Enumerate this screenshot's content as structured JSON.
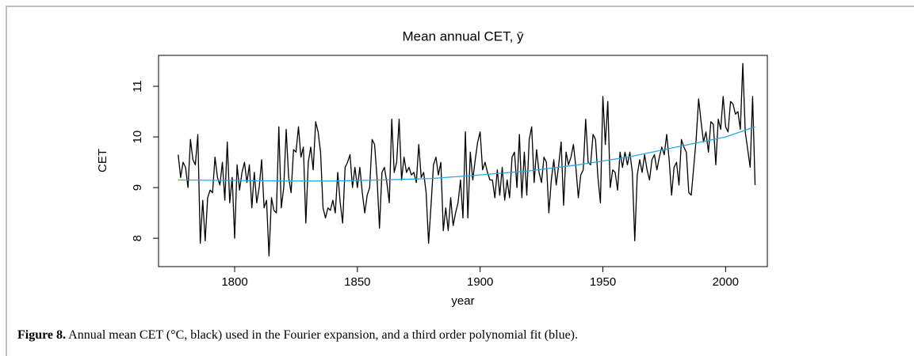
{
  "chart_data": {
    "type": "line",
    "title": "Mean annual CET,  ȳ",
    "xlabel": "year",
    "ylabel": "CET",
    "xlim": [
      1769,
      2017
    ],
    "ylim": [
      7.44,
      11.61
    ],
    "xticks": [
      1800,
      1850,
      1900,
      1950,
      2000
    ],
    "yticks": [
      8,
      9,
      10,
      11
    ],
    "grid": false,
    "series": [
      {
        "color": "#000000",
        "x": [
          1777,
          1778,
          1779,
          1780,
          1781,
          1782,
          1783,
          1784,
          1785,
          1786,
          1787,
          1788,
          1789,
          1790,
          1791,
          1792,
          1793,
          1794,
          1795,
          1796,
          1797,
          1798,
          1799,
          1800,
          1801,
          1802,
          1803,
          1804,
          1805,
          1806,
          1807,
          1808,
          1809,
          1810,
          1811,
          1812,
          1813,
          1814,
          1815,
          1816,
          1817,
          1818,
          1819,
          1820,
          1821,
          1822,
          1823,
          1824,
          1825,
          1826,
          1827,
          1828,
          1829,
          1830,
          1831,
          1832,
          1833,
          1834,
          1835,
          1836,
          1837,
          1838,
          1839,
          1840,
          1841,
          1842,
          1843,
          1844,
          1845,
          1846,
          1847,
          1848,
          1849,
          1850,
          1851,
          1852,
          1853,
          1854,
          1855,
          1856,
          1857,
          1858,
          1859,
          1860,
          1861,
          1862,
          1863,
          1864,
          1865,
          1866,
          1867,
          1868,
          1869,
          1870,
          1871,
          1872,
          1873,
          1874,
          1875,
          1876,
          1877,
          1878,
          1879,
          1880,
          1881,
          1882,
          1883,
          1884,
          1885,
          1886,
          1887,
          1888,
          1889,
          1890,
          1891,
          1892,
          1893,
          1894,
          1895,
          1896,
          1897,
          1898,
          1899,
          1900,
          1901,
          1902,
          1903,
          1904,
          1905,
          1906,
          1907,
          1908,
          1909,
          1910,
          1911,
          1912,
          1913,
          1914,
          1915,
          1916,
          1917,
          1918,
          1919,
          1920,
          1921,
          1922,
          1923,
          1924,
          1925,
          1926,
          1927,
          1928,
          1929,
          1930,
          1931,
          1932,
          1933,
          1934,
          1935,
          1936,
          1937,
          1938,
          1939,
          1940,
          1941,
          1942,
          1943,
          1944,
          1945,
          1946,
          1947,
          1948,
          1949,
          1950,
          1951,
          1952,
          1953,
          1954,
          1955,
          1956,
          1957,
          1958,
          1959,
          1960,
          1961,
          1962,
          1963,
          1964,
          1965,
          1966,
          1967,
          1968,
          1969,
          1970,
          1971,
          1972,
          1973,
          1974,
          1975,
          1976,
          1977,
          1978,
          1979,
          1980,
          1981,
          1982,
          1983,
          1984,
          1985,
          1986,
          1987,
          1988,
          1989,
          1990,
          1991,
          1992,
          1993,
          1994,
          1995,
          1996,
          1997,
          1998,
          1999,
          2000,
          2001,
          2002,
          2003,
          2004,
          2005,
          2006,
          2007,
          2008,
          2009,
          2010,
          2011,
          2012
        ],
        "values": [
          9.65,
          9.2,
          9.5,
          9.4,
          9.0,
          9.95,
          9.55,
          9.45,
          10.05,
          7.9,
          8.75,
          7.95,
          8.8,
          8.95,
          8.9,
          9.6,
          9.2,
          9.05,
          9.5,
          8.75,
          9.9,
          8.7,
          9.2,
          8.0,
          9.45,
          8.95,
          9.3,
          9.5,
          9.1,
          9.45,
          8.6,
          9.3,
          8.7,
          9.0,
          9.55,
          8.6,
          8.75,
          7.65,
          8.8,
          8.55,
          8.5,
          10.2,
          8.6,
          9.0,
          10.15,
          9.2,
          8.9,
          9.75,
          9.7,
          10.2,
          9.6,
          9.8,
          8.3,
          9.5,
          9.8,
          9.35,
          10.3,
          10.1,
          9.7,
          8.6,
          8.4,
          8.6,
          8.55,
          8.75,
          8.5,
          9.3,
          8.7,
          8.3,
          9.4,
          9.5,
          9.65,
          9.0,
          9.4,
          9.0,
          9.4,
          8.9,
          8.5,
          8.85,
          9.0,
          9.95,
          9.85,
          9.2,
          8.2,
          9.3,
          9.4,
          9.1,
          8.7,
          10.35,
          9.3,
          9.5,
          10.35,
          9.15,
          9.6,
          9.3,
          9.4,
          9.25,
          9.3,
          9.1,
          9.85,
          9.2,
          9.3,
          8.9,
          7.9,
          8.65,
          9.45,
          9.6,
          9.25,
          9.5,
          8.15,
          8.6,
          8.15,
          8.8,
          8.25,
          8.5,
          8.7,
          9.15,
          8.4,
          10.1,
          8.4,
          9.7,
          9.15,
          9.55,
          9.9,
          10.1,
          9.35,
          9.5,
          9.3,
          9.15,
          9.15,
          8.8,
          9.35,
          8.85,
          9.4,
          8.75,
          9.15,
          8.8,
          9.6,
          9.7,
          9.0,
          10.05,
          8.8,
          9.7,
          8.85,
          9.95,
          10.2,
          9.1,
          9.75,
          9.3,
          9.1,
          9.6,
          9.5,
          8.5,
          9.15,
          9.55,
          9.05,
          9.45,
          9.9,
          8.65,
          9.7,
          9.45,
          9.6,
          9.85,
          9.4,
          8.8,
          9.25,
          9.35,
          10.35,
          9.5,
          9.45,
          10.05,
          9.95,
          9.2,
          8.7,
          10.8,
          9.85,
          10.7,
          9.0,
          9.35,
          9.3,
          8.95,
          9.7,
          9.4,
          9.7,
          9.45,
          9.7,
          9.3,
          7.95,
          9.25,
          9.55,
          9.3,
          9.65,
          9.35,
          9.15,
          9.55,
          9.65,
          9.35,
          9.6,
          9.8,
          9.65,
          10.05,
          9.55,
          8.85,
          9.4,
          9.5,
          9.05,
          9.95,
          9.8,
          9.7,
          8.9,
          8.85,
          9.4,
          9.95,
          10.75,
          10.3,
          9.9,
          10.1,
          9.7,
          10.3,
          10.25,
          9.45,
          10.35,
          10.15,
          10.8,
          10.2,
          10.1,
          10.7,
          10.65,
          10.45,
          10.5,
          10.15,
          11.45,
          10.1,
          9.75,
          9.4,
          10.8,
          9.05
        ]
      },
      {
        "color": "#29a8e0",
        "x": [
          1777,
          1800,
          1820,
          1840,
          1860,
          1880,
          1900,
          1920,
          1940,
          1960,
          1980,
          2000,
          2012
        ],
        "values": [
          9.15,
          9.14,
          9.13,
          9.13,
          9.15,
          9.18,
          9.25,
          9.33,
          9.45,
          9.6,
          9.8,
          10.0,
          10.2
        ]
      }
    ]
  },
  "caption": {
    "label": "Figure 8.",
    "text": "Annual mean CET (°C, black) used in the Fourier expansion, and a third order polynomial fit (blue)."
  }
}
